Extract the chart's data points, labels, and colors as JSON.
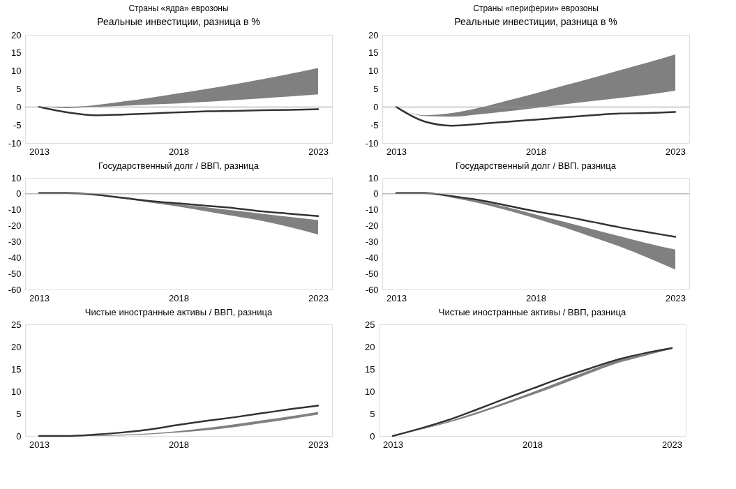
{
  "chart_data": [
    {
      "type": "line",
      "title": "Страны «ядра» еврозоны",
      "subtitle": "Реальные инвестиции, разница в %",
      "x": [
        2013,
        2014,
        2015,
        2016,
        2017,
        2018,
        2019,
        2020,
        2021,
        2022,
        2023
      ],
      "xlim": [
        2012.5,
        2023.5
      ],
      "xticks": [
        2013,
        2018,
        2023
      ],
      "ylim": [
        -10,
        20
      ],
      "yticks": [
        -10,
        -5,
        0,
        5,
        10,
        15,
        20
      ],
      "grid": false,
      "ref_lines": [
        {
          "axis": "y",
          "value": 0,
          "color": "#999999"
        }
      ],
      "series": [
        {
          "color": "#333333",
          "values": [
            0,
            -1.5,
            -2.3,
            -2.1,
            -1.8,
            -1.5,
            -1.2,
            -1.1,
            -0.9,
            -0.8,
            -0.6
          ],
          "lower": [
            0,
            -0.3,
            0,
            0.3,
            0.7,
            1.0,
            1.4,
            1.9,
            2.4,
            2.9,
            3.5
          ],
          "upper": [
            0,
            0,
            0.5,
            1.5,
            2.6,
            3.8,
            5.0,
            6.3,
            7.7,
            9.2,
            10.8
          ]
        }
      ]
    },
    {
      "type": "line",
      "title": "Страны «периферии» еврозоны",
      "subtitle": "Реальные инвестиции, разница в %",
      "x": [
        2013,
        2014,
        2015,
        2016,
        2017,
        2018,
        2019,
        2020,
        2021,
        2022,
        2023
      ],
      "xlim": [
        2012.5,
        2023.5
      ],
      "xticks": [
        2013,
        2018,
        2023
      ],
      "ylim": [
        -10,
        20
      ],
      "yticks": [
        -10,
        -5,
        0,
        5,
        10,
        15,
        20
      ],
      "grid": false,
      "ref_lines": [
        {
          "axis": "y",
          "value": 0,
          "color": "#999999"
        }
      ],
      "series": [
        {
          "color": "#333333",
          "values": [
            0,
            -4,
            -5.2,
            -4.7,
            -4.1,
            -3.5,
            -2.9,
            -2.3,
            -1.8,
            -1.7,
            -1.4
          ],
          "lower": [
            0,
            -2.5,
            -2.7,
            -2,
            -1.2,
            -0.3,
            0.7,
            1.6,
            2.5,
            3.4,
            4.5
          ],
          "upper": [
            0,
            -2.3,
            -1.7,
            -0.2,
            1.8,
            3.8,
            5.9,
            8.0,
            10.2,
            12.3,
            14.6
          ]
        }
      ]
    },
    {
      "type": "line",
      "title": "Государственный долг / ВВП, разница",
      "x": [
        2013,
        2014,
        2015,
        2016,
        2017,
        2018,
        2019,
        2020,
        2021,
        2022,
        2023
      ],
      "xlim": [
        2012.5,
        2023.5
      ],
      "xticks": [
        2013,
        2018,
        2023
      ],
      "ylim": [
        -60,
        10
      ],
      "yticks": [
        -60,
        -50,
        -40,
        -30,
        -20,
        -10,
        0,
        10
      ],
      "grid": false,
      "ref_lines": [
        {
          "axis": "y",
          "value": 0,
          "color": "#999999"
        }
      ],
      "series": [
        {
          "color": "#333333",
          "values": [
            0.5,
            0.5,
            -0.5,
            -2.5,
            -4.5,
            -6,
            -7.5,
            -9,
            -11,
            -12.5,
            -14
          ],
          "lower": [
            0.5,
            0.5,
            -0.7,
            -3,
            -5.5,
            -8,
            -11,
            -14,
            -17,
            -21,
            -25.5
          ],
          "upper": [
            0.5,
            0.5,
            -0.5,
            -2.5,
            -4.5,
            -6.5,
            -8.5,
            -10.5,
            -12.5,
            -14.5,
            -16.5
          ]
        }
      ]
    },
    {
      "type": "line",
      "title": "Государственный долг / ВВП, разница",
      "x": [
        2013,
        2014,
        2015,
        2016,
        2017,
        2018,
        2019,
        2020,
        2021,
        2022,
        2023
      ],
      "xlim": [
        2012.5,
        2023.5
      ],
      "xticks": [
        2013,
        2018,
        2023
      ],
      "ylim": [
        -60,
        10
      ],
      "yticks": [
        -60,
        -50,
        -40,
        -30,
        -20,
        -10,
        0,
        10
      ],
      "grid": false,
      "ref_lines": [
        {
          "axis": "y",
          "value": 0,
          "color": "#999999"
        }
      ],
      "series": [
        {
          "color": "#333333",
          "values": [
            0.5,
            0.5,
            -1.5,
            -4,
            -7.5,
            -11,
            -14,
            -17.5,
            -21,
            -24,
            -27
          ],
          "lower": [
            0.5,
            0.5,
            -2.5,
            -6,
            -10.5,
            -15.5,
            -21,
            -27,
            -33,
            -40,
            -47.5
          ],
          "upper": [
            0.5,
            0.5,
            -2,
            -4.5,
            -8.5,
            -13,
            -17.5,
            -22,
            -26.5,
            -31,
            -35
          ]
        }
      ]
    },
    {
      "type": "line",
      "title": "Чистые иностранные активы / ВВП, разница",
      "x": [
        2013,
        2014,
        2015,
        2016,
        2017,
        2018,
        2019,
        2020,
        2021,
        2022,
        2023
      ],
      "xlim": [
        2012.5,
        2023.5
      ],
      "xticks": [
        2013,
        2018,
        2023
      ],
      "ylim": [
        0,
        25
      ],
      "yticks": [
        0,
        5,
        10,
        15,
        20,
        25
      ],
      "grid": false,
      "series": [
        {
          "color": "#333333",
          "values": [
            0,
            0,
            0.3,
            0.8,
            1.5,
            2.5,
            3.4,
            4.2,
            5.1,
            6,
            6.8
          ],
          "lower": [
            0,
            0,
            0,
            0.1,
            0.4,
            0.8,
            1.3,
            2,
            2.9,
            3.8,
            4.8
          ],
          "upper": [
            0,
            0,
            0.1,
            0.3,
            0.6,
            1.1,
            1.8,
            2.6,
            3.5,
            4.4,
            5.4
          ]
        }
      ]
    },
    {
      "type": "line",
      "title": "Чистые иностранные активы / ВВП, разница",
      "x": [
        2013,
        2014,
        2015,
        2016,
        2017,
        2018,
        2019,
        2020,
        2021,
        2022,
        2023
      ],
      "xlim": [
        2012.5,
        2023.5
      ],
      "xticks": [
        2013,
        2018,
        2023
      ],
      "ylim": [
        0,
        25
      ],
      "yticks": [
        0,
        5,
        10,
        15,
        20,
        25
      ],
      "grid": false,
      "series": [
        {
          "color": "#333333",
          "values": [
            0,
            1.7,
            3.6,
            5.9,
            8.3,
            10.6,
            12.9,
            15,
            17,
            18.5,
            19.7
          ],
          "lower": [
            0,
            1.4,
            3.0,
            4.9,
            7.0,
            9.2,
            11.5,
            13.9,
            16.2,
            17.9,
            19.5
          ],
          "upper": [
            0,
            1.5,
            3.3,
            5.3,
            7.5,
            9.8,
            12.2,
            14.6,
            16.8,
            18.3,
            19.6
          ]
        }
      ]
    }
  ]
}
